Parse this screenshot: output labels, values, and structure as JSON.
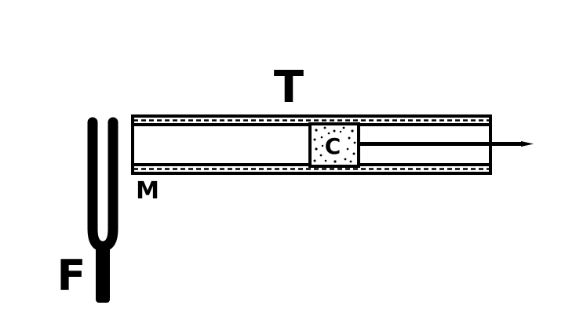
{
  "labels": {
    "tube": "T",
    "mouth": "M",
    "fork": "F",
    "plug": "C"
  },
  "colors": {
    "ink": "#000000",
    "paper": "#ffffff"
  }
}
